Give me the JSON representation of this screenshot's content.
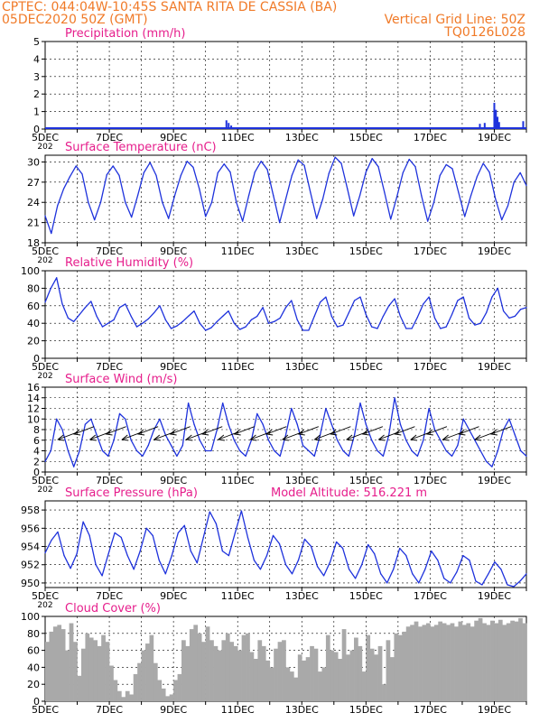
{
  "header": {
    "line1": "CPTEC:   044:04W-10:45S   SANTA RITA DE CASSIA (BA)",
    "line2": "05DEC2020 50Z (GMT)",
    "grid_line": "Vertical Grid Line: 50Z",
    "code": "TQ0126L028",
    "accent_color": "#f07a28",
    "title_color": "#e61e8c",
    "series_color": "#1e32dc"
  },
  "chart_data": [
    {
      "type": "bar",
      "title": "Precipitation (mm/h)",
      "ylim": [
        0,
        5
      ],
      "yticks": [
        "0",
        "1",
        "2",
        "3",
        "4",
        "5"
      ],
      "x_range_days": [
        0,
        15
      ],
      "xticks": [
        "5DEC",
        "7DEC",
        "9DEC",
        "11DEC",
        "13DEC",
        "15DEC",
        "17DEC",
        "19DEC"
      ],
      "x_extra_label": "202",
      "events": [
        {
          "day": 5.65,
          "value": 0.5
        },
        {
          "day": 5.72,
          "value": 0.35
        },
        {
          "day": 5.8,
          "value": 0.2
        },
        {
          "day": 13.55,
          "value": 0.3
        },
        {
          "day": 13.7,
          "value": 0.35
        },
        {
          "day": 14.0,
          "value": 1.5
        },
        {
          "day": 14.05,
          "value": 1.1
        },
        {
          "day": 14.1,
          "value": 0.7
        },
        {
          "day": 14.15,
          "value": 0.4
        },
        {
          "day": 14.9,
          "value": 0.45
        }
      ]
    },
    {
      "type": "line",
      "title": "Surface Temperature (nC)",
      "ylim": [
        18,
        31
      ],
      "yticks": [
        "18",
        "21",
        "24",
        "27",
        "30"
      ],
      "x_range_days": [
        0,
        15
      ],
      "xticks": [
        "5DEC",
        "7DEC",
        "9DEC",
        "11DEC",
        "13DEC",
        "15DEC",
        "17DEC",
        "19DEC"
      ],
      "x_extra_label": "202",
      "values": [
        22.0,
        19.4,
        23.5,
        26.0,
        27.8,
        29.4,
        28.2,
        24.0,
        21.4,
        24.0,
        28.1,
        29.4,
        28.0,
        24.0,
        21.8,
        25.0,
        28.4,
        29.9,
        28.0,
        24.0,
        21.6,
        25.0,
        28.0,
        30.1,
        29.2,
        26.0,
        21.9,
        24.0,
        28.4,
        29.7,
        28.5,
        24.0,
        21.2,
        25.0,
        28.5,
        30.1,
        28.9,
        25.0,
        21.0,
        24.5,
        28.0,
        30.3,
        29.5,
        25.5,
        21.6,
        24.5,
        28.3,
        30.7,
        29.8,
        26.0,
        22.0,
        25.0,
        28.5,
        30.5,
        29.3,
        25.5,
        21.5,
        24.8,
        28.4,
        30.4,
        29.3,
        25.0,
        21.2,
        24.0,
        28.0,
        29.6,
        29.0,
        25.5,
        21.9,
        25.0,
        27.8,
        29.8,
        28.5,
        24.5,
        21.4,
        23.5,
        27.0,
        28.4,
        26.5
      ]
    },
    {
      "type": "line",
      "title": "Relative Humidity (%)",
      "ylim": [
        0,
        100
      ],
      "yticks": [
        "0",
        "20",
        "40",
        "60",
        "80",
        "100"
      ],
      "x_range_days": [
        0,
        15
      ],
      "xticks": [
        "5DEC",
        "7DEC",
        "9DEC",
        "11DEC",
        "13DEC",
        "15DEC",
        "17DEC",
        "19DEC"
      ],
      "x_extra_label": "202",
      "values": [
        64,
        80,
        92,
        62,
        46,
        42,
        50,
        58,
        65,
        48,
        36,
        40,
        44,
        58,
        62,
        48,
        36,
        40,
        45,
        52,
        60,
        44,
        34,
        37,
        42,
        48,
        54,
        40,
        32,
        35,
        42,
        48,
        54,
        40,
        33,
        36,
        44,
        48,
        58,
        40,
        42,
        46,
        58,
        66,
        44,
        32,
        32,
        48,
        64,
        70,
        48,
        36,
        38,
        52,
        66,
        70,
        50,
        36,
        34,
        48,
        60,
        68,
        48,
        34,
        34,
        47,
        62,
        70,
        46,
        34,
        36,
        50,
        66,
        70,
        46,
        38,
        40,
        52,
        70,
        80,
        54,
        46,
        48,
        56,
        58
      ]
    },
    {
      "type": "line",
      "title": "Surface Wind (m/s)",
      "ylim": [
        0,
        16
      ],
      "yticks": [
        "0",
        "2",
        "4",
        "6",
        "8",
        "10",
        "12",
        "14",
        "16"
      ],
      "x_range_days": [
        0,
        15
      ],
      "xticks": [
        "5DEC",
        "7DEC",
        "9DEC",
        "11DEC",
        "13DEC",
        "15DEC",
        "17DEC",
        "19DEC"
      ],
      "x_extra_label": "202",
      "values": [
        2,
        4,
        10,
        8,
        4,
        1,
        4,
        9,
        10,
        7,
        4,
        3,
        6,
        11,
        10,
        6,
        4,
        3,
        5,
        8,
        10,
        7,
        5,
        3,
        5,
        13,
        9,
        6,
        4,
        4,
        8,
        13,
        9,
        6,
        4,
        3,
        6,
        11,
        9,
        6,
        4,
        3,
        7,
        12,
        9,
        5,
        4,
        3,
        7,
        12,
        9,
        6,
        4,
        3,
        7,
        13,
        9,
        6,
        4,
        3,
        7,
        14,
        9,
        6,
        4,
        3,
        6,
        12,
        8,
        6,
        4,
        3,
        5,
        10,
        8,
        6,
        4,
        2,
        1,
        4,
        8,
        10,
        7,
        4,
        3
      ]
    },
    {
      "type": "line",
      "title": "Surface Pressure (hPa)",
      "annotation": "Model Altitude: 516.221  m",
      "ylim": [
        949.5,
        959
      ],
      "yticks": [
        "950",
        "952",
        "954",
        "956",
        "958"
      ],
      "x_range_days": [
        0,
        15
      ],
      "xticks": [
        "5DEC",
        "7DEC",
        "9DEC",
        "11DEC",
        "13DEC",
        "15DEC",
        "17DEC",
        "19DEC"
      ],
      "x_extra_label": "202",
      "values": [
        953.3,
        954.7,
        955.6,
        953.0,
        951.6,
        953.2,
        956.7,
        955.2,
        952.0,
        950.8,
        953.2,
        955.5,
        955.0,
        953.0,
        951.5,
        953.5,
        956.0,
        955.2,
        952.5,
        951.0,
        953.0,
        955.5,
        956.3,
        953.5,
        952.2,
        955.0,
        957.8,
        956.5,
        953.5,
        953.0,
        955.5,
        957.9,
        955.0,
        952.5,
        951.5,
        953.0,
        955.2,
        954.3,
        952.0,
        951.0,
        952.5,
        954.8,
        954.0,
        951.8,
        950.8,
        952.3,
        954.5,
        953.8,
        951.5,
        950.5,
        952.0,
        954.2,
        953.2,
        951.0,
        950.0,
        951.5,
        953.8,
        953.0,
        951.0,
        950.0,
        951.5,
        953.5,
        952.5,
        950.5,
        950.0,
        951.2,
        953.0,
        952.5,
        950.2,
        949.8,
        951.0,
        952.3,
        951.5,
        949.8,
        949.6,
        950.2,
        951.0
      ]
    },
    {
      "type": "bar",
      "title": "Cloud Cover (%)",
      "ylim": [
        0,
        100
      ],
      "yticks": [
        "0",
        "20",
        "40",
        "60",
        "80",
        "100"
      ],
      "x_range_days": [
        0,
        15
      ],
      "xticks": [
        "5DEC",
        "7DEC",
        "9DEC",
        "11DEC",
        "13DEC",
        "15DEC",
        "17DEC",
        "19DEC"
      ],
      "values": [
        70,
        82,
        88,
        90,
        85,
        60,
        92,
        70,
        30,
        62,
        80,
        75,
        72,
        65,
        78,
        70,
        42,
        25,
        12,
        5,
        12,
        8,
        32,
        45,
        60,
        68,
        78,
        45,
        25,
        15,
        6,
        8,
        25,
        32,
        72,
        65,
        85,
        90,
        80,
        70,
        88,
        72,
        65,
        60,
        72,
        80,
        70,
        65,
        60,
        78,
        80,
        58,
        50,
        72,
        65,
        48,
        40,
        62,
        70,
        72,
        40,
        35,
        28,
        55,
        48,
        52,
        65,
        62,
        35,
        40,
        78,
        60,
        58,
        50,
        85,
        55,
        60,
        75,
        65,
        35,
        78,
        62,
        55,
        65,
        20,
        72,
        52,
        80,
        78,
        82,
        88,
        90,
        94,
        88,
        90,
        92,
        88,
        90,
        94,
        92,
        90,
        92,
        88,
        94,
        90,
        92,
        88,
        95,
        98,
        92,
        90,
        95,
        92,
        96,
        90,
        92,
        95,
        94,
        98,
        92
      ]
    }
  ]
}
